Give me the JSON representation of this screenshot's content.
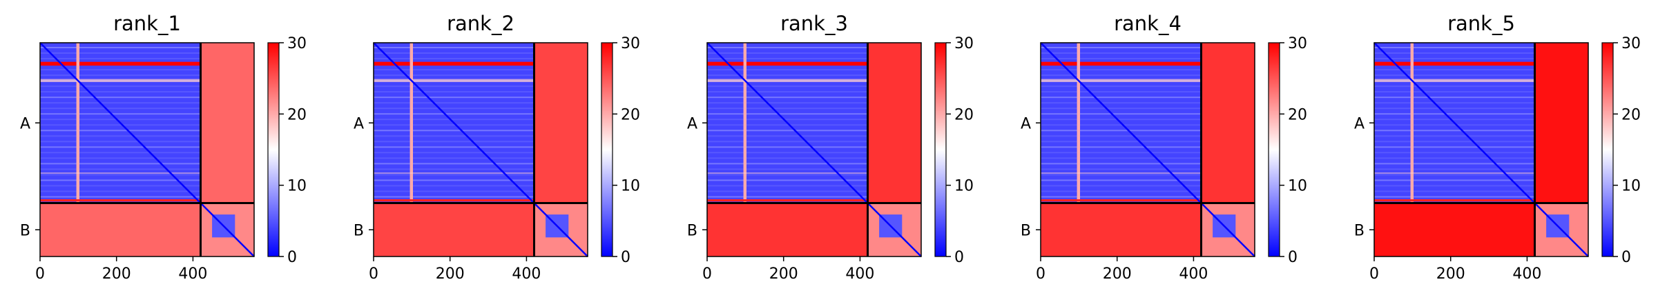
{
  "chart_data": [
    {
      "type": "heatmap",
      "title": "rank_1",
      "x_ticks": [
        0,
        200,
        400
      ],
      "y_tick_labels": [
        "A",
        "B"
      ],
      "chains": [
        {
          "name": "A",
          "length": 420
        },
        {
          "name": "B",
          "length": 140
        }
      ],
      "xlim": [
        0,
        560
      ],
      "colorbar": {
        "ticks": [
          0,
          10,
          20,
          30
        ],
        "range": [
          0,
          30
        ],
        "colors": [
          "#0000ff",
          "#ffffff",
          "#ff0000"
        ]
      },
      "offdiag_ab_value": 24
    },
    {
      "type": "heatmap",
      "title": "rank_2",
      "x_ticks": [
        0,
        200,
        400
      ],
      "y_tick_labels": [
        "A",
        "B"
      ],
      "chains": [
        {
          "name": "A",
          "length": 420
        },
        {
          "name": "B",
          "length": 140
        }
      ],
      "xlim": [
        0,
        560
      ],
      "colorbar": {
        "ticks": [
          0,
          10,
          20,
          30
        ],
        "range": [
          0,
          30
        ],
        "colors": [
          "#0000ff",
          "#ffffff",
          "#ff0000"
        ]
      },
      "offdiag_ab_value": 26
    },
    {
      "type": "heatmap",
      "title": "rank_3",
      "x_ticks": [
        0,
        200,
        400
      ],
      "y_tick_labels": [
        "A",
        "B"
      ],
      "chains": [
        {
          "name": "A",
          "length": 420
        },
        {
          "name": "B",
          "length": 140
        }
      ],
      "xlim": [
        0,
        560
      ],
      "colorbar": {
        "ticks": [
          0,
          10,
          20,
          30
        ],
        "range": [
          0,
          30
        ],
        "colors": [
          "#0000ff",
          "#ffffff",
          "#ff0000"
        ]
      },
      "offdiag_ab_value": 27
    },
    {
      "type": "heatmap",
      "title": "rank_4",
      "x_ticks": [
        0,
        200,
        400
      ],
      "y_tick_labels": [
        "A",
        "B"
      ],
      "chains": [
        {
          "name": "A",
          "length": 420
        },
        {
          "name": "B",
          "length": 140
        }
      ],
      "xlim": [
        0,
        560
      ],
      "colorbar": {
        "ticks": [
          0,
          10,
          20,
          30
        ],
        "range": [
          0,
          30
        ],
        "colors": [
          "#0000ff",
          "#ffffff",
          "#ff0000"
        ]
      },
      "offdiag_ab_value": 27
    },
    {
      "type": "heatmap",
      "title": "rank_5",
      "x_ticks": [
        0,
        200,
        400
      ],
      "y_tick_labels": [
        "A",
        "B"
      ],
      "chains": [
        {
          "name": "A",
          "length": 420
        },
        {
          "name": "B",
          "length": 140
        }
      ],
      "xlim": [
        0,
        560
      ],
      "colorbar": {
        "ticks": [
          0,
          10,
          20,
          30
        ],
        "range": [
          0,
          30
        ],
        "colors": [
          "#0000ff",
          "#ffffff",
          "#ff0000"
        ]
      },
      "offdiag_ab_value": 29
    }
  ]
}
